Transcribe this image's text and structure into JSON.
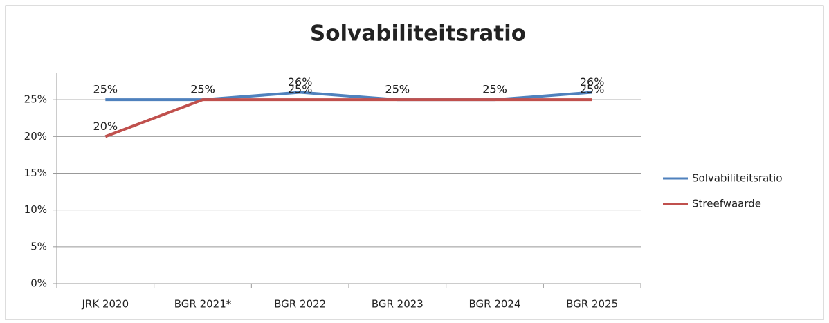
{
  "chart_data": {
    "type": "line",
    "title": "Solvabiliteitsratio",
    "categories": [
      "JRK 2020",
      "BGR 2021*",
      "BGR 2022",
      "BGR 2023",
      "BGR 2024",
      "BGR 2025"
    ],
    "series": [
      {
        "name": "Solvabiliteitsratio",
        "color": "#4f81bd",
        "values": [
          25,
          25,
          26,
          25,
          25,
          26
        ],
        "value_labels": [
          "25%",
          "25%",
          "26%",
          "25%",
          "25%",
          "26%"
        ]
      },
      {
        "name": "Streefwaarde",
        "color": "#c0504d",
        "values": [
          20,
          25,
          25,
          25,
          25,
          25
        ],
        "value_labels": [
          "20%",
          "25%",
          "25%",
          "25%",
          "25%",
          "25%"
        ]
      }
    ],
    "ylim": [
      0,
      30
    ],
    "yticks": [
      {
        "value": 0,
        "label": "0%"
      },
      {
        "value": 5,
        "label": "5%"
      },
      {
        "value": 10,
        "label": "10%"
      },
      {
        "value": 15,
        "label": "15%"
      },
      {
        "value": 20,
        "label": "20%"
      },
      {
        "value": 25,
        "label": "25%"
      }
    ],
    "grid": true,
    "legend": "right"
  }
}
